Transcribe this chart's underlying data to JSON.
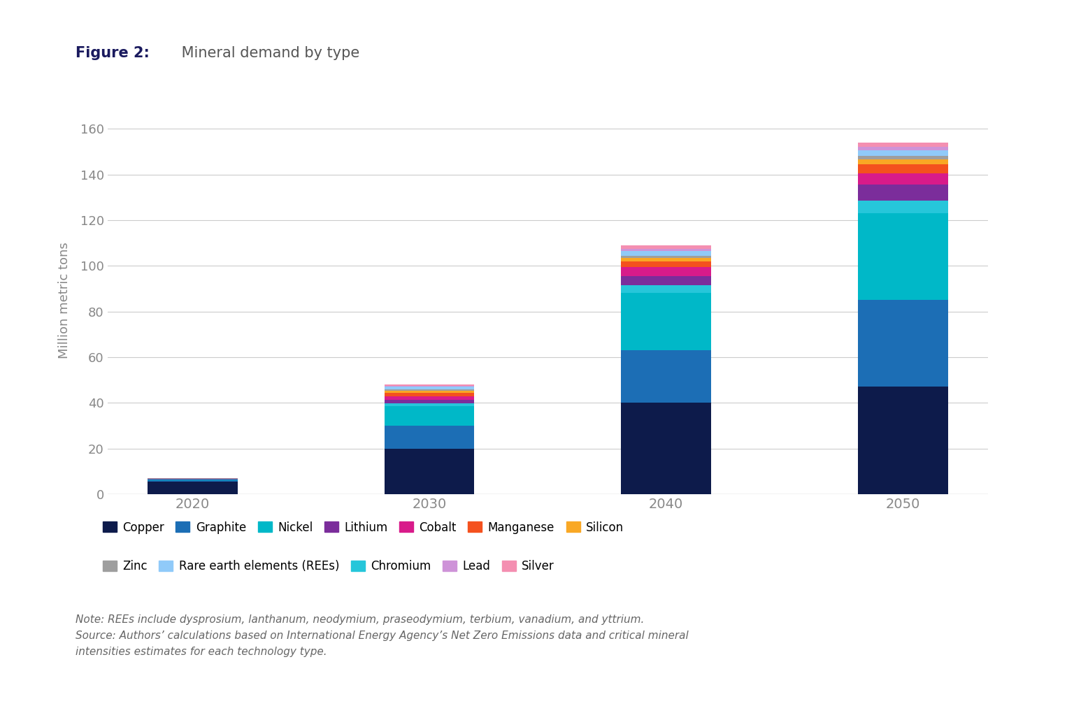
{
  "title_bold": "Figure 2:",
  "title_normal": " Mineral demand by type",
  "ylabel": "Million metric tons",
  "categories": [
    "2020",
    "2030",
    "2040",
    "2050"
  ],
  "minerals": [
    "Copper",
    "Graphite",
    "Nickel",
    "Chromium",
    "Lithium",
    "Cobalt",
    "Manganese",
    "Silicon",
    "Zinc",
    "Rare earth elements (REEs)",
    "Lead",
    "Silver"
  ],
  "colors": [
    "#0d1b4b",
    "#1c6eb5",
    "#00b8c8",
    "#26c6da",
    "#7b2d9b",
    "#d81b8a",
    "#f4511e",
    "#f9a825",
    "#9e9e9e",
    "#90caf9",
    "#ce93d8",
    "#f48fb1"
  ],
  "values": {
    "2020": [
      5.5,
      0.5,
      0.4,
      0.1,
      0.1,
      0.1,
      0.1,
      0.05,
      0.05,
      0.05,
      0.03,
      0.02
    ],
    "2030": [
      20.0,
      10.0,
      8.5,
      1.2,
      1.5,
      1.5,
      1.8,
      0.8,
      0.5,
      1.2,
      0.5,
      0.5
    ],
    "2040": [
      40.0,
      23.0,
      25.0,
      3.5,
      4.0,
      4.0,
      2.5,
      1.5,
      1.0,
      2.0,
      1.0,
      1.5
    ],
    "2050": [
      47.0,
      38.0,
      38.0,
      5.5,
      7.0,
      5.0,
      4.0,
      2.0,
      1.5,
      2.5,
      1.5,
      2.0
    ]
  },
  "note": "Note: REEs include dysprosium, lanthanum, neodymium, praseodymium, terbium, vanadium, and yttrium.\nSource: Authors’ calculations based on International Energy Agency’s Net Zero Emissions data and critical mineral\nintensities estimates for each technology type.",
  "ylim": [
    0,
    170
  ],
  "yticks": [
    0,
    20,
    40,
    60,
    80,
    100,
    120,
    140,
    160
  ],
  "bar_width": 0.38,
  "background_color": "#ffffff",
  "grid_color": "#cccccc",
  "tick_color": "#888888",
  "title_bold_color": "#1a1a5e",
  "title_normal_color": "#555555",
  "legend_row1": [
    "Copper",
    "Graphite",
    "Nickel",
    "Lithium",
    "Cobalt",
    "Manganese",
    "Silicon"
  ],
  "legend_row2": [
    "Zinc",
    "Rare earth elements (REEs)",
    "Chromium",
    "Lead",
    "Silver"
  ]
}
